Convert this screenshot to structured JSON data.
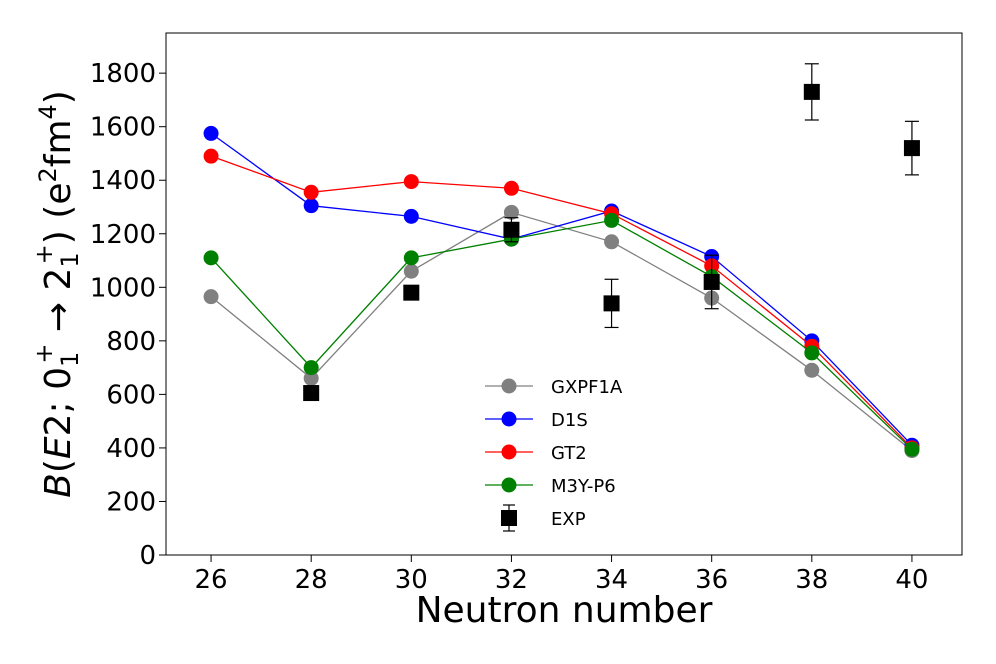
{
  "chart_data": {
    "type": "line",
    "xlabel": "Neutron number",
    "ylabel": {
      "main": "B(E2; 0",
      "sub1": "1",
      "sup1": "+",
      "arrow": " → 2",
      "sub2": "1",
      "sup2": "+",
      "unit_pre": ") (e",
      "unit_sup1": "2",
      "unit_mid": "fm",
      "unit_sup2": "4",
      "unit_post": ")"
    },
    "xlim": [
      25.1,
      41.0
    ],
    "ylim": [
      0,
      1950
    ],
    "xticks": [
      26,
      28,
      30,
      32,
      34,
      36,
      38,
      40
    ],
    "yticks": [
      0,
      200,
      400,
      600,
      800,
      1000,
      1200,
      1400,
      1600,
      1800
    ],
    "x": [
      26,
      28,
      30,
      32,
      34,
      36,
      38,
      40
    ],
    "series": [
      {
        "name": "GXPF1A",
        "color": "#808080",
        "values": [
          965,
          660,
          1060,
          1280,
          1170,
          960,
          690,
          390
        ]
      },
      {
        "name": "D1S",
        "color": "#0000ff",
        "values": [
          1575,
          1305,
          1265,
          1180,
          1285,
          1115,
          800,
          410
        ]
      },
      {
        "name": "GT2",
        "color": "#ff0000",
        "values": [
          1490,
          1355,
          1395,
          1370,
          1275,
          1080,
          780,
          400
        ]
      },
      {
        "name": "M3Y-P6",
        "color": "#008000",
        "values": [
          1110,
          700,
          1110,
          1180,
          1250,
          1040,
          755,
          395
        ]
      }
    ],
    "experiment": {
      "name": "EXP",
      "color": "#000000",
      "points": [
        {
          "x": 28,
          "y": 605,
          "err": 0
        },
        {
          "x": 30,
          "y": 980,
          "err": 0
        },
        {
          "x": 32,
          "y": 1215,
          "err": 45
        },
        {
          "x": 34,
          "y": 940,
          "err": 90
        },
        {
          "x": 36,
          "y": 1020,
          "err": 100
        },
        {
          "x": 38,
          "y": 1730,
          "err": 105
        },
        {
          "x": 40,
          "y": 1520,
          "err": 100
        }
      ]
    },
    "legend": "lower-center"
  }
}
